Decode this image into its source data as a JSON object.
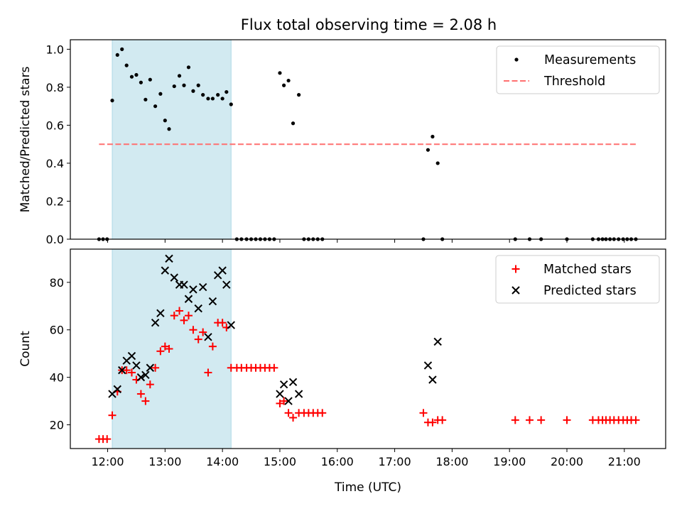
{
  "figure": {
    "title": "Flux total observing time = 2.08 h"
  },
  "colors": {
    "shade": "#add8e6",
    "threshold": "#ff7070",
    "matched": "#ff0000",
    "predicted": "#000000",
    "measurement": "#000000"
  },
  "chart_data": [
    {
      "type": "scatter",
      "xlabel": "",
      "ylabel": "Matched/Predicted stars",
      "xlim": [
        11.35,
        21.72
      ],
      "ylim": [
        0.0,
        1.05
      ],
      "yticks": [
        0.0,
        0.2,
        0.4,
        0.6,
        0.8,
        1.0
      ],
      "ytick_labels": [
        "0.0",
        "0.2",
        "0.4",
        "0.6",
        "0.8",
        "1.0"
      ],
      "xticks": [
        12,
        13,
        14,
        15,
        16,
        17,
        18,
        19,
        20,
        21
      ],
      "shaded_region": [
        12.08,
        14.15
      ],
      "legend": {
        "placement": "top-right",
        "entries": [
          "Measurements",
          "Threshold"
        ]
      },
      "threshold": {
        "name": "Threshold",
        "y": 0.5,
        "x_range": [
          11.85,
          21.2
        ]
      },
      "series": [
        {
          "name": "Measurements",
          "points": [
            [
              11.85,
              0.0
            ],
            [
              11.92,
              0.0
            ],
            [
              11.99,
              0.0
            ],
            [
              12.08,
              0.73
            ],
            [
              12.17,
              0.97
            ],
            [
              12.25,
              1.0
            ],
            [
              12.33,
              0.915
            ],
            [
              12.42,
              0.855
            ],
            [
              12.5,
              0.865
            ],
            [
              12.58,
              0.825
            ],
            [
              12.66,
              0.735
            ],
            [
              12.74,
              0.84
            ],
            [
              12.83,
              0.7
            ],
            [
              12.92,
              0.765
            ],
            [
              13.0,
              0.625
            ],
            [
              13.07,
              0.58
            ],
            [
              13.16,
              0.805
            ],
            [
              13.25,
              0.86
            ],
            [
              13.33,
              0.81
            ],
            [
              13.41,
              0.905
            ],
            [
              13.49,
              0.78
            ],
            [
              13.58,
              0.81
            ],
            [
              13.66,
              0.76
            ],
            [
              13.75,
              0.74
            ],
            [
              13.83,
              0.74
            ],
            [
              13.92,
              0.76
            ],
            [
              14.0,
              0.74
            ],
            [
              14.07,
              0.775
            ],
            [
              14.15,
              0.71
            ],
            [
              14.25,
              0.0
            ],
            [
              14.33,
              0.0
            ],
            [
              14.42,
              0.0
            ],
            [
              14.5,
              0.0
            ],
            [
              14.58,
              0.0
            ],
            [
              14.66,
              0.0
            ],
            [
              14.74,
              0.0
            ],
            [
              14.82,
              0.0
            ],
            [
              14.9,
              0.0
            ],
            [
              15.0,
              0.875
            ],
            [
              15.07,
              0.81
            ],
            [
              15.15,
              0.835
            ],
            [
              15.23,
              0.61
            ],
            [
              15.33,
              0.76
            ],
            [
              15.42,
              0.0
            ],
            [
              15.5,
              0.0
            ],
            [
              15.58,
              0.0
            ],
            [
              15.66,
              0.0
            ],
            [
              15.74,
              0.0
            ],
            [
              17.5,
              0.0
            ],
            [
              17.58,
              0.47
            ],
            [
              17.66,
              0.54
            ],
            [
              17.75,
              0.4
            ],
            [
              17.83,
              0.0
            ],
            [
              19.1,
              0.0
            ],
            [
              19.35,
              0.0
            ],
            [
              19.55,
              0.0
            ],
            [
              20.0,
              0.0
            ],
            [
              20.45,
              0.0
            ],
            [
              20.55,
              0.0
            ],
            [
              20.62,
              0.0
            ],
            [
              20.68,
              0.0
            ],
            [
              20.75,
              0.0
            ],
            [
              20.82,
              0.0
            ],
            [
              20.9,
              0.0
            ],
            [
              20.98,
              0.0
            ],
            [
              21.05,
              0.0
            ],
            [
              21.12,
              0.0
            ],
            [
              21.2,
              0.0
            ]
          ]
        }
      ]
    },
    {
      "type": "scatter",
      "xlabel": "Time (UTC)",
      "ylabel": "Count",
      "xlim": [
        11.35,
        21.72
      ],
      "ylim": [
        10,
        94
      ],
      "yticks": [
        20,
        40,
        60,
        80
      ],
      "ytick_labels": [
        "20",
        "40",
        "60",
        "80"
      ],
      "xticks": [
        12,
        13,
        14,
        15,
        16,
        17,
        18,
        19,
        20,
        21
      ],
      "xtick_labels": [
        "12:00",
        "13:00",
        "14:00",
        "15:00",
        "16:00",
        "17:00",
        "18:00",
        "19:00",
        "20:00",
        "21:00"
      ],
      "shaded_region": [
        12.08,
        14.15
      ],
      "legend": {
        "placement": "top-right",
        "entries": [
          "Matched stars",
          "Predicted stars"
        ]
      },
      "series": [
        {
          "name": "Matched stars",
          "marker": "plus",
          "points": [
            [
              11.85,
              14
            ],
            [
              11.92,
              14
            ],
            [
              11.99,
              14
            ],
            [
              12.08,
              24
            ],
            [
              12.17,
              34
            ],
            [
              12.25,
              43
            ],
            [
              12.33,
              43
            ],
            [
              12.42,
              42
            ],
            [
              12.5,
              39
            ],
            [
              12.58,
              33
            ],
            [
              12.66,
              30
            ],
            [
              12.74,
              37
            ],
            [
              12.83,
              44
            ],
            [
              12.92,
              51
            ],
            [
              13.0,
              53
            ],
            [
              13.07,
              52
            ],
            [
              13.16,
              66
            ],
            [
              13.25,
              68
            ],
            [
              13.33,
              64
            ],
            [
              13.41,
              66
            ],
            [
              13.49,
              60
            ],
            [
              13.58,
              56
            ],
            [
              13.66,
              59
            ],
            [
              13.75,
              42
            ],
            [
              13.83,
              53
            ],
            [
              13.92,
              63
            ],
            [
              14.0,
              63
            ],
            [
              14.07,
              61
            ],
            [
              14.15,
              44
            ],
            [
              14.25,
              44
            ],
            [
              14.33,
              44
            ],
            [
              14.42,
              44
            ],
            [
              14.5,
              44
            ],
            [
              14.58,
              44
            ],
            [
              14.66,
              44
            ],
            [
              14.74,
              44
            ],
            [
              14.82,
              44
            ],
            [
              14.9,
              44
            ],
            [
              15.0,
              29
            ],
            [
              15.07,
              30
            ],
            [
              15.15,
              25
            ],
            [
              15.23,
              23
            ],
            [
              15.33,
              25
            ],
            [
              15.42,
              25
            ],
            [
              15.5,
              25
            ],
            [
              15.58,
              25
            ],
            [
              15.66,
              25
            ],
            [
              15.74,
              25
            ],
            [
              17.5,
              25
            ],
            [
              17.58,
              21
            ],
            [
              17.66,
              21
            ],
            [
              17.75,
              22
            ],
            [
              17.83,
              22
            ],
            [
              19.1,
              22
            ],
            [
              19.35,
              22
            ],
            [
              19.55,
              22
            ],
            [
              20.0,
              22
            ],
            [
              20.45,
              22
            ],
            [
              20.55,
              22
            ],
            [
              20.62,
              22
            ],
            [
              20.68,
              22
            ],
            [
              20.75,
              22
            ],
            [
              20.82,
              22
            ],
            [
              20.9,
              22
            ],
            [
              20.98,
              22
            ],
            [
              21.05,
              22
            ],
            [
              21.12,
              22
            ],
            [
              21.2,
              22
            ]
          ]
        },
        {
          "name": "Predicted stars",
          "marker": "x",
          "points": [
            [
              12.08,
              33
            ],
            [
              12.17,
              35
            ],
            [
              12.25,
              43
            ],
            [
              12.33,
              47
            ],
            [
              12.42,
              49
            ],
            [
              12.5,
              45
            ],
            [
              12.58,
              40
            ],
            [
              12.66,
              41
            ],
            [
              12.74,
              44
            ],
            [
              12.83,
              63
            ],
            [
              12.92,
              67
            ],
            [
              13.0,
              85
            ],
            [
              13.07,
              90
            ],
            [
              13.16,
              82
            ],
            [
              13.25,
              79
            ],
            [
              13.33,
              79
            ],
            [
              13.41,
              73
            ],
            [
              13.49,
              77
            ],
            [
              13.58,
              69
            ],
            [
              13.66,
              78
            ],
            [
              13.75,
              57
            ],
            [
              13.83,
              72
            ],
            [
              13.92,
              83
            ],
            [
              14.0,
              85
            ],
            [
              14.07,
              79
            ],
            [
              14.15,
              62
            ],
            [
              15.0,
              33
            ],
            [
              15.07,
              37
            ],
            [
              15.15,
              30
            ],
            [
              15.23,
              38
            ],
            [
              15.33,
              33
            ],
            [
              17.58,
              45
            ],
            [
              17.66,
              39
            ],
            [
              17.75,
              55
            ]
          ]
        }
      ]
    }
  ]
}
